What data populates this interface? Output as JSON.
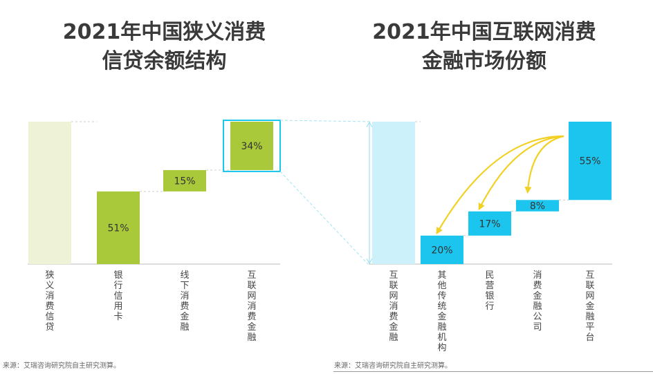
{
  "colors": {
    "light_green": "#eef3d8",
    "green": "#a9c93a",
    "light_cyan": "#ccf1fb",
    "cyan": "#1cc5ee",
    "arrow": "#f2d024",
    "dash": "#9fe3f3",
    "title": "#3a3a3a"
  },
  "left": {
    "title_line1": "2021年中国狭义消费",
    "title_line2": "信贷余额结构",
    "source": "来源：艾瑞咨询研究院自主研究测算。"
  },
  "right": {
    "title_line1": "2021年中国互联网消费",
    "title_line2": "金融市场份额",
    "source": "来源：艾瑞咨询研究院自主研究测算。"
  },
  "chart_data": [
    {
      "type": "bar",
      "subtype": "waterfall",
      "title": "2021年中国狭义消费信贷余额结构",
      "categories": [
        "狭义消费信贷",
        "银行信用卡",
        "线下消费金融",
        "互联网消费金融"
      ],
      "values": [
        100,
        51,
        15,
        34
      ],
      "labels": [
        "",
        "51%",
        "15%",
        "34%"
      ],
      "total_index": 0,
      "highlight_index": 3
    },
    {
      "type": "bar",
      "subtype": "waterfall",
      "title": "2021年中国互联网消费金融市场份额",
      "categories": [
        "互联网消费金融",
        "其他传统金融机构",
        "民营银行",
        "消费金融公司",
        "互联网金融平台"
      ],
      "values": [
        100,
        20,
        17,
        8,
        55
      ],
      "labels": [
        "",
        "20%",
        "17%",
        "8%",
        "55%"
      ],
      "total_index": 0
    }
  ]
}
